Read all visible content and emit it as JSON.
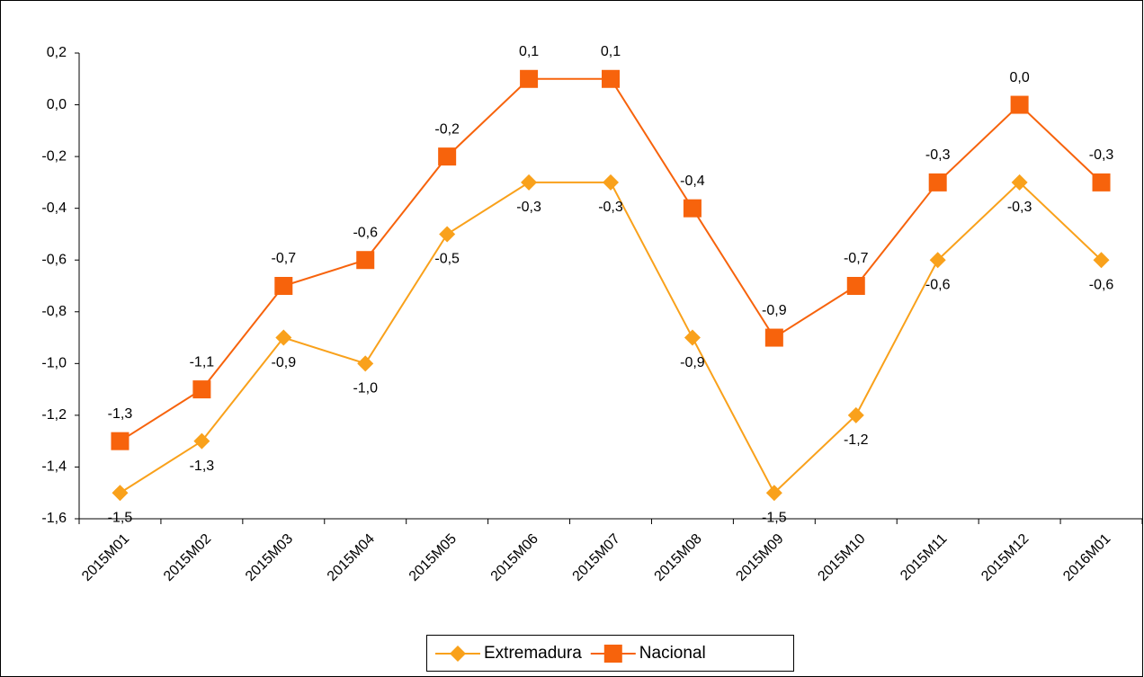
{
  "chart_data": {
    "type": "line",
    "categories": [
      "2015M01",
      "2015M02",
      "2015M03",
      "2015M04",
      "2015M05",
      "2015M06",
      "2015M07",
      "2015M08",
      "2015M09",
      "2015M10",
      "2015M11",
      "2015M12",
      "2016M01"
    ],
    "series": [
      {
        "name": "Extremadura",
        "color": "#f9a11b",
        "marker": "diamond",
        "values": [
          -1.5,
          -1.3,
          -0.9,
          -1.0,
          -0.5,
          -0.3,
          -0.3,
          -0.9,
          -1.5,
          -1.2,
          -0.6,
          -0.3,
          -0.6
        ],
        "value_labels": [
          "-1,5",
          "-1,3",
          "-0,9",
          "-1,0",
          "-0,5",
          "-0,3",
          "-0,3",
          "-0,9",
          "-1,5",
          "-1,2",
          "-0,6",
          "-0,3",
          "-0,6"
        ]
      },
      {
        "name": "Nacional",
        "color": "#f7630c",
        "marker": "square",
        "values": [
          -1.3,
          -1.1,
          -0.7,
          -0.6,
          -0.2,
          0.1,
          0.1,
          -0.4,
          -0.9,
          -0.7,
          -0.3,
          0.0,
          -0.3
        ],
        "value_labels": [
          "-1,3",
          "-1,1",
          "-0,7",
          "-0,6",
          "-0,2",
          "0,1",
          "0,1",
          "-0,4",
          "-0,9",
          "-0,7",
          "-0,3",
          "0,0",
          "-0,3"
        ]
      }
    ],
    "ylim": [
      -1.6,
      0.2
    ],
    "yticks": [
      {
        "value": -1.6,
        "label": "-1,6"
      },
      {
        "value": -1.4,
        "label": "-1,4"
      },
      {
        "value": -1.2,
        "label": "-1,2"
      },
      {
        "value": -1.0,
        "label": "-1,0"
      },
      {
        "value": -0.8,
        "label": "-0,8"
      },
      {
        "value": -0.6,
        "label": "-0,6"
      },
      {
        "value": -0.4,
        "label": "-0,4"
      },
      {
        "value": -0.2,
        "label": "-0,2"
      },
      {
        "value": 0.0,
        "label": "0,0"
      },
      {
        "value": 0.2,
        "label": "0,2"
      }
    ],
    "legend": "bottom"
  }
}
